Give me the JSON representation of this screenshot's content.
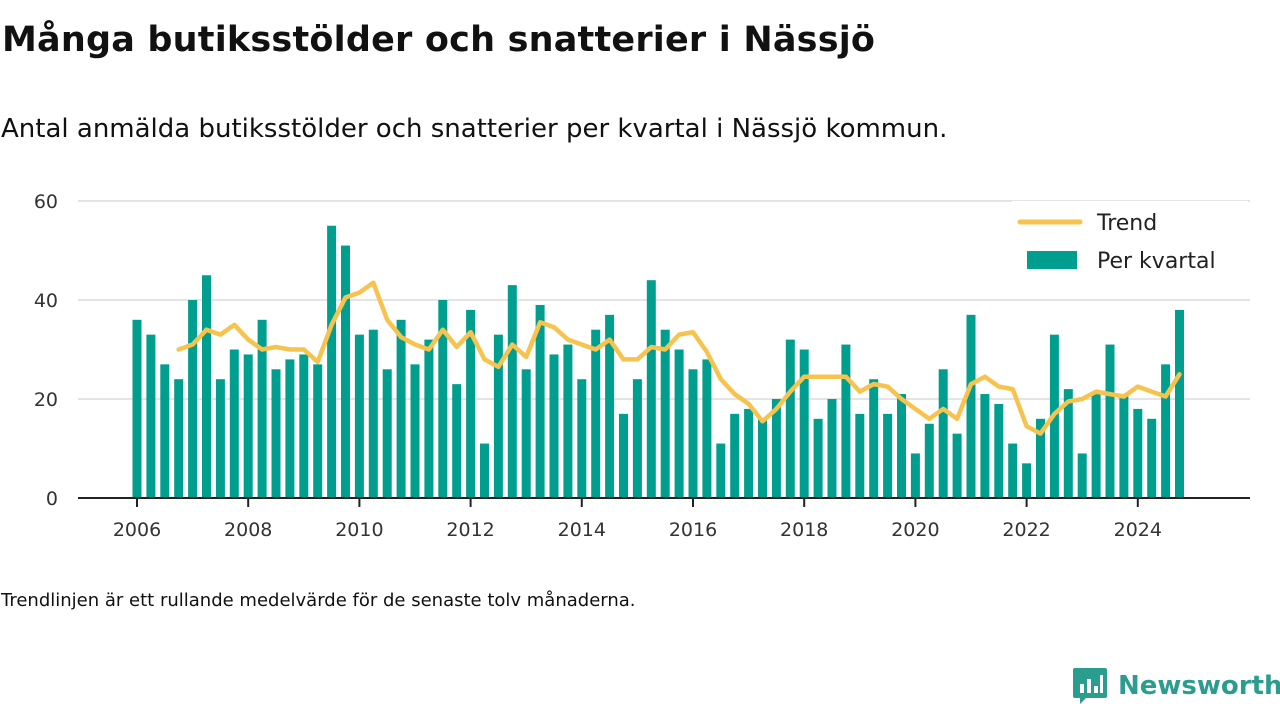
{
  "title": "Många butiksstölder och snatterier i Nässjö",
  "subtitle": "Antal anmälda butiksstölder och snatterier per kvartal i Nässjö kommun.",
  "note": "Trendlinjen är ett rullande medelvärde för de senaste tolv månaderna.",
  "brand": {
    "name": "Newsworthy",
    "icon": "bar-chart-logo-icon"
  },
  "colors": {
    "bars": "#009e8e",
    "trend": "#f7c34f",
    "grid": "#dcdcdc",
    "axis": "#222222",
    "brand": "#2a9d8f"
  },
  "chart_data": {
    "type": "bar",
    "ylim": [
      0,
      60
    ],
    "yticks": [
      0,
      20,
      40,
      60
    ],
    "xlim": [
      2006,
      2026
    ],
    "xticks": [
      2006,
      2008,
      2010,
      2012,
      2014,
      2016,
      2018,
      2020,
      2022,
      2024
    ],
    "grid": "horizontal",
    "legend_position": "top-right",
    "x": [
      2006.0,
      2006.25,
      2006.5,
      2006.75,
      2007.0,
      2007.25,
      2007.5,
      2007.75,
      2008.0,
      2008.25,
      2008.5,
      2008.75,
      2009.0,
      2009.25,
      2009.5,
      2009.75,
      2010.0,
      2010.25,
      2010.5,
      2010.75,
      2011.0,
      2011.25,
      2011.5,
      2011.75,
      2012.0,
      2012.25,
      2012.5,
      2012.75,
      2013.0,
      2013.25,
      2013.5,
      2013.75,
      2014.0,
      2014.25,
      2014.5,
      2014.75,
      2015.0,
      2015.25,
      2015.5,
      2015.75,
      2016.0,
      2016.25,
      2016.5,
      2016.75,
      2017.0,
      2017.25,
      2017.5,
      2017.75,
      2018.0,
      2018.25,
      2018.5,
      2018.75,
      2019.0,
      2019.25,
      2019.5,
      2019.75,
      2020.0,
      2020.25,
      2020.5,
      2020.75,
      2021.0,
      2021.25,
      2021.5,
      2021.75,
      2022.0,
      2022.25,
      2022.5,
      2022.75,
      2023.0,
      2023.25,
      2023.5,
      2023.75,
      2024.0,
      2024.25,
      2024.5,
      2024.75
    ],
    "series": [
      {
        "name": "Per kvartal",
        "type": "bar",
        "values": [
          36,
          33,
          27,
          24,
          40,
          45,
          24,
          30,
          29,
          36,
          26,
          28,
          29,
          27,
          55,
          51,
          33,
          34,
          26,
          36,
          27,
          32,
          40,
          23,
          38,
          11,
          33,
          43,
          26,
          39,
          29,
          31,
          24,
          34,
          37,
          17,
          24,
          44,
          34,
          30,
          26,
          28,
          11,
          17,
          18,
          16,
          20,
          32,
          30,
          16,
          20,
          31,
          17,
          24,
          17,
          21,
          9,
          15,
          26,
          13,
          37,
          21,
          19,
          11,
          7,
          16,
          33,
          22,
          9,
          21,
          31,
          21,
          18,
          16,
          27,
          38
        ]
      },
      {
        "name": "Trend",
        "type": "line",
        "values": [
          null,
          null,
          null,
          30,
          31,
          34,
          33,
          35,
          32,
          30,
          30.5,
          30,
          30,
          27.5,
          35,
          40.5,
          41.5,
          43.5,
          36,
          32.5,
          31,
          30,
          34,
          30.5,
          33.5,
          28,
          26.5,
          31,
          28.5,
          35.5,
          34.5,
          32,
          31,
          30,
          32,
          28,
          28,
          30.5,
          30,
          33,
          33.5,
          29.5,
          24,
          21,
          19,
          15.5,
          18,
          21.5,
          24.5,
          24.5,
          24.5,
          24.5,
          21.5,
          23,
          22.5,
          20,
          18,
          16,
          18,
          16,
          23,
          24.5,
          22.5,
          22,
          14.5,
          13,
          17,
          19.5,
          20,
          21.5,
          21,
          20.5,
          22.5,
          21.5,
          20.5,
          25
        ]
      }
    ]
  }
}
